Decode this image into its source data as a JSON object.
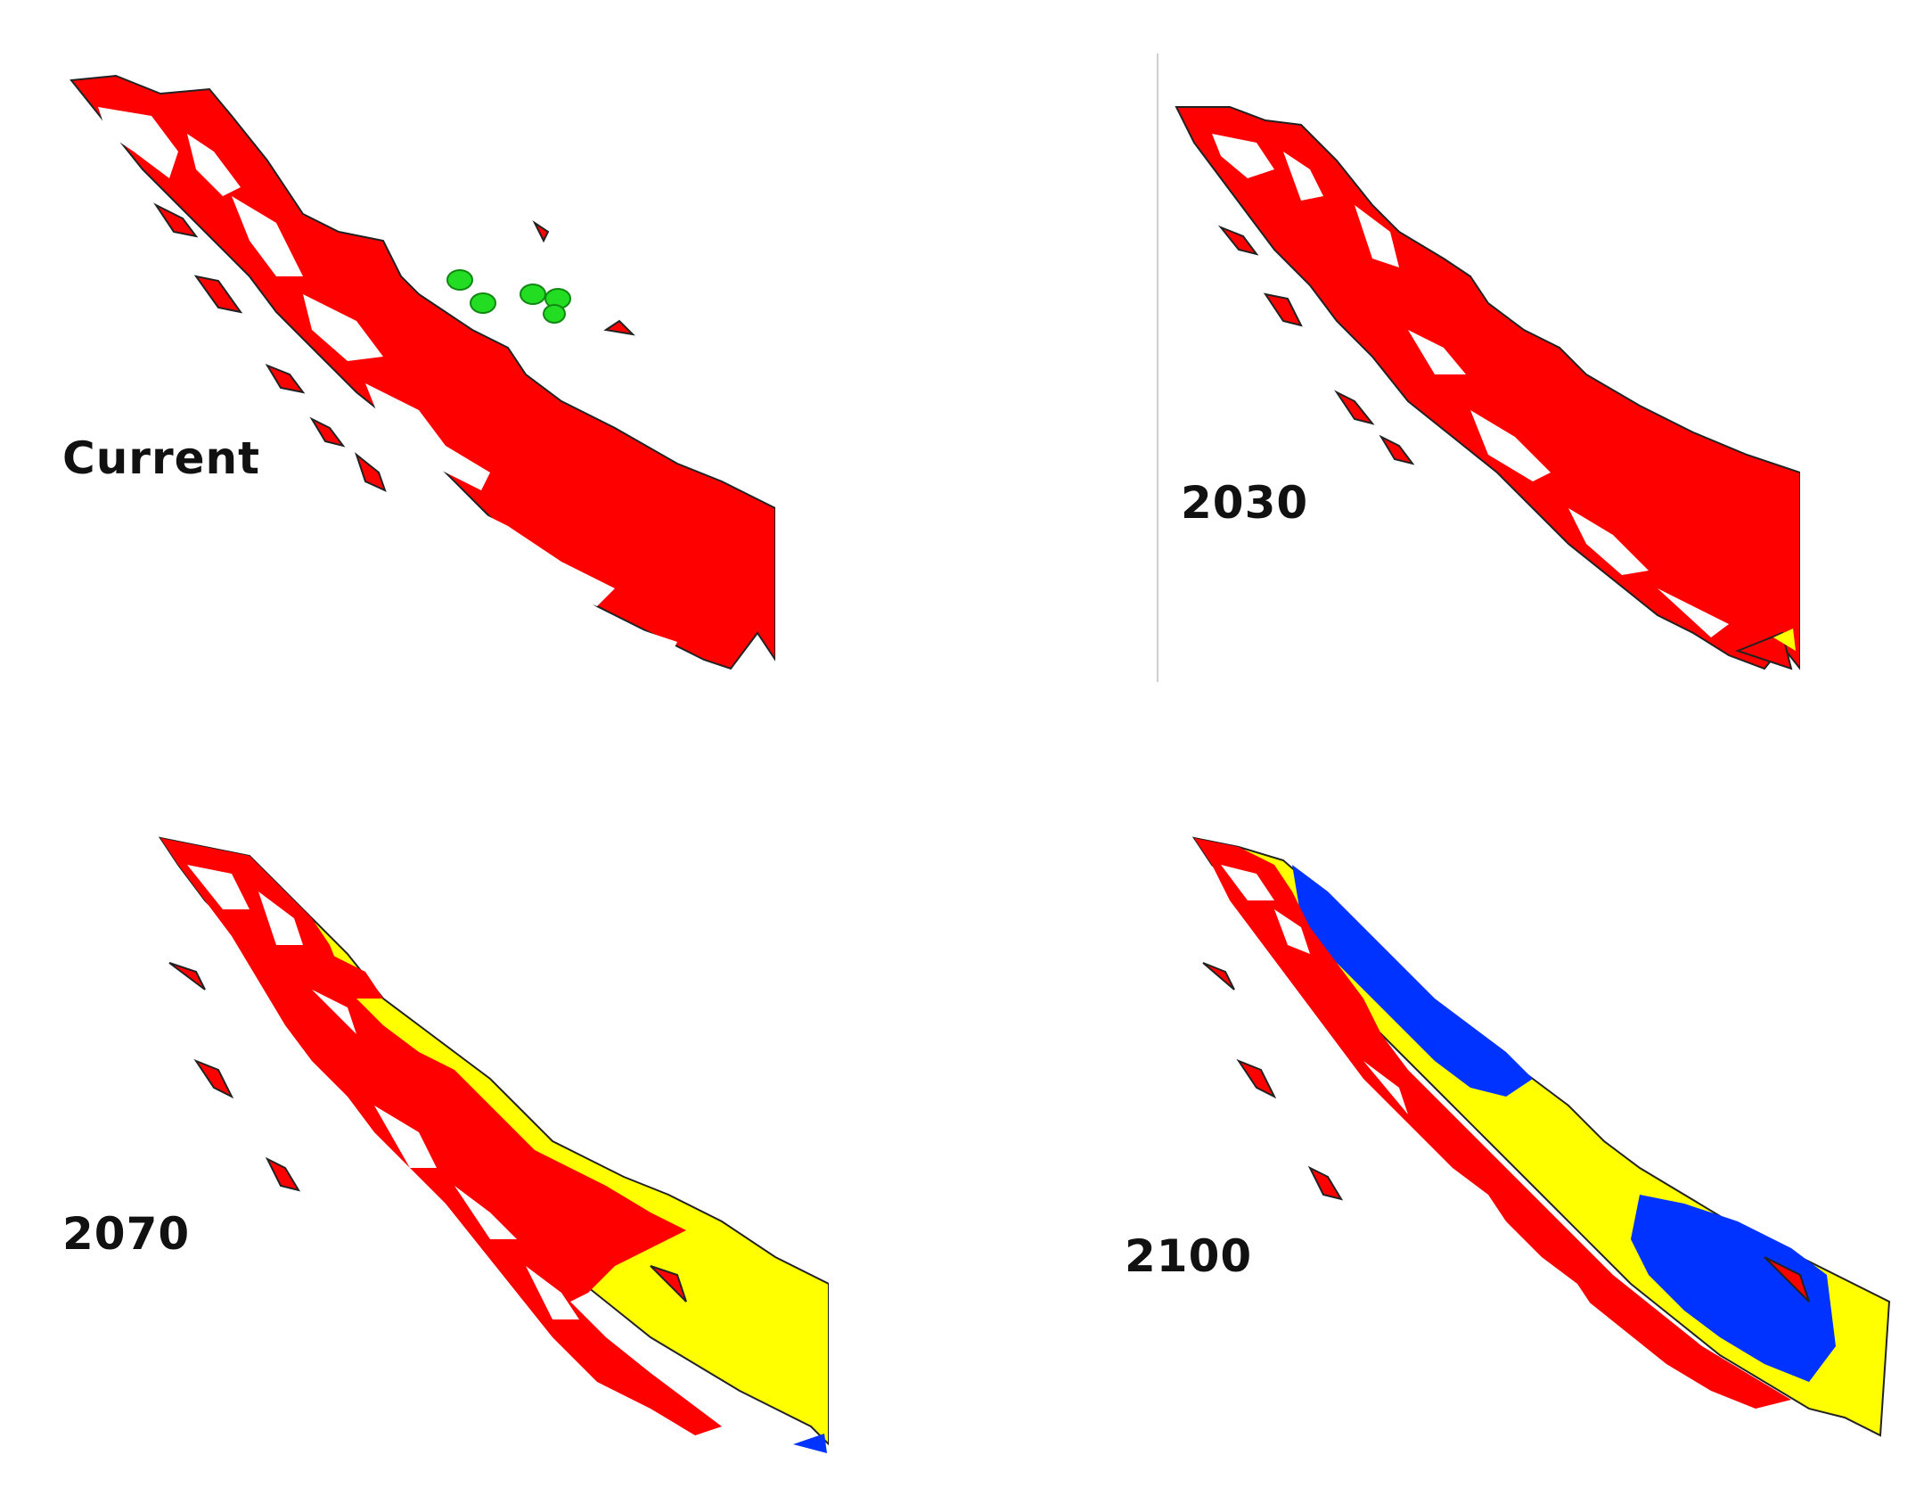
{
  "panels": [
    {
      "id": "current",
      "label": "Current"
    },
    {
      "id": "y2030",
      "label": "2030"
    },
    {
      "id": "y2070",
      "label": "2070"
    },
    {
      "id": "y2100",
      "label": "2100"
    }
  ],
  "legend_colors": {
    "suitable": "#ff0000",
    "unsuitable": "#ffffff",
    "moderate": "#ffff00",
    "low": "#0033ff",
    "occurrence_points": "#22dd22"
  },
  "occurrence_point_count": 5
}
